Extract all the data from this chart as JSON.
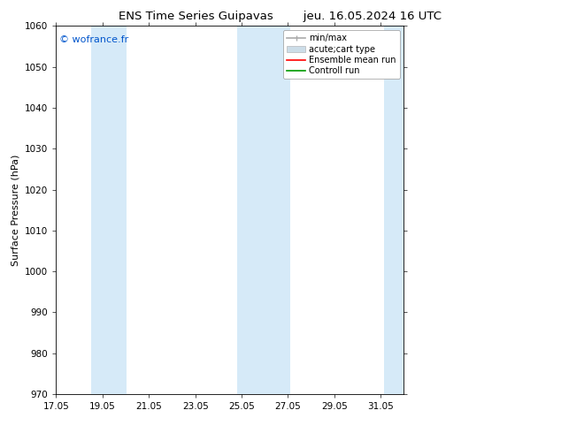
{
  "title_left": "ENS Time Series Guipavas",
  "title_right": "jeu. 16.05.2024 16 UTC",
  "ylabel": "Surface Pressure (hPa)",
  "ylim": [
    970,
    1060
  ],
  "yticks": [
    970,
    980,
    990,
    1000,
    1010,
    1020,
    1030,
    1040,
    1050,
    1060
  ],
  "xlim": [
    17.05,
    32.05
  ],
  "xticks": [
    17.05,
    19.05,
    21.05,
    23.05,
    25.05,
    27.05,
    29.05,
    31.05
  ],
  "xticklabels": [
    "17.05",
    "19.05",
    "21.05",
    "23.05",
    "25.05",
    "27.05",
    "29.05",
    "31.05"
  ],
  "watermark": "© wofrance.fr",
  "watermark_color": "#0055cc",
  "bg_color": "#ffffff",
  "plot_bg_color": "#ffffff",
  "shaded_bands": [
    {
      "xmin": 18.55,
      "xmax": 20.1,
      "color": "#d6eaf8"
    },
    {
      "xmin": 24.85,
      "xmax": 27.15,
      "color": "#d6eaf8"
    },
    {
      "xmin": 31.2,
      "xmax": 32.1,
      "color": "#d6eaf8"
    }
  ],
  "legend_labels": [
    "min/max",
    "acute;cart type",
    "Ensemble mean run",
    "Controll run"
  ],
  "legend_colors": [
    "#aaaaaa",
    "#bbccdd",
    "#ff0000",
    "#009900"
  ],
  "title_fontsize": 9.5,
  "axis_fontsize": 8,
  "tick_fontsize": 7.5,
  "watermark_fontsize": 8,
  "legend_fontsize": 7
}
